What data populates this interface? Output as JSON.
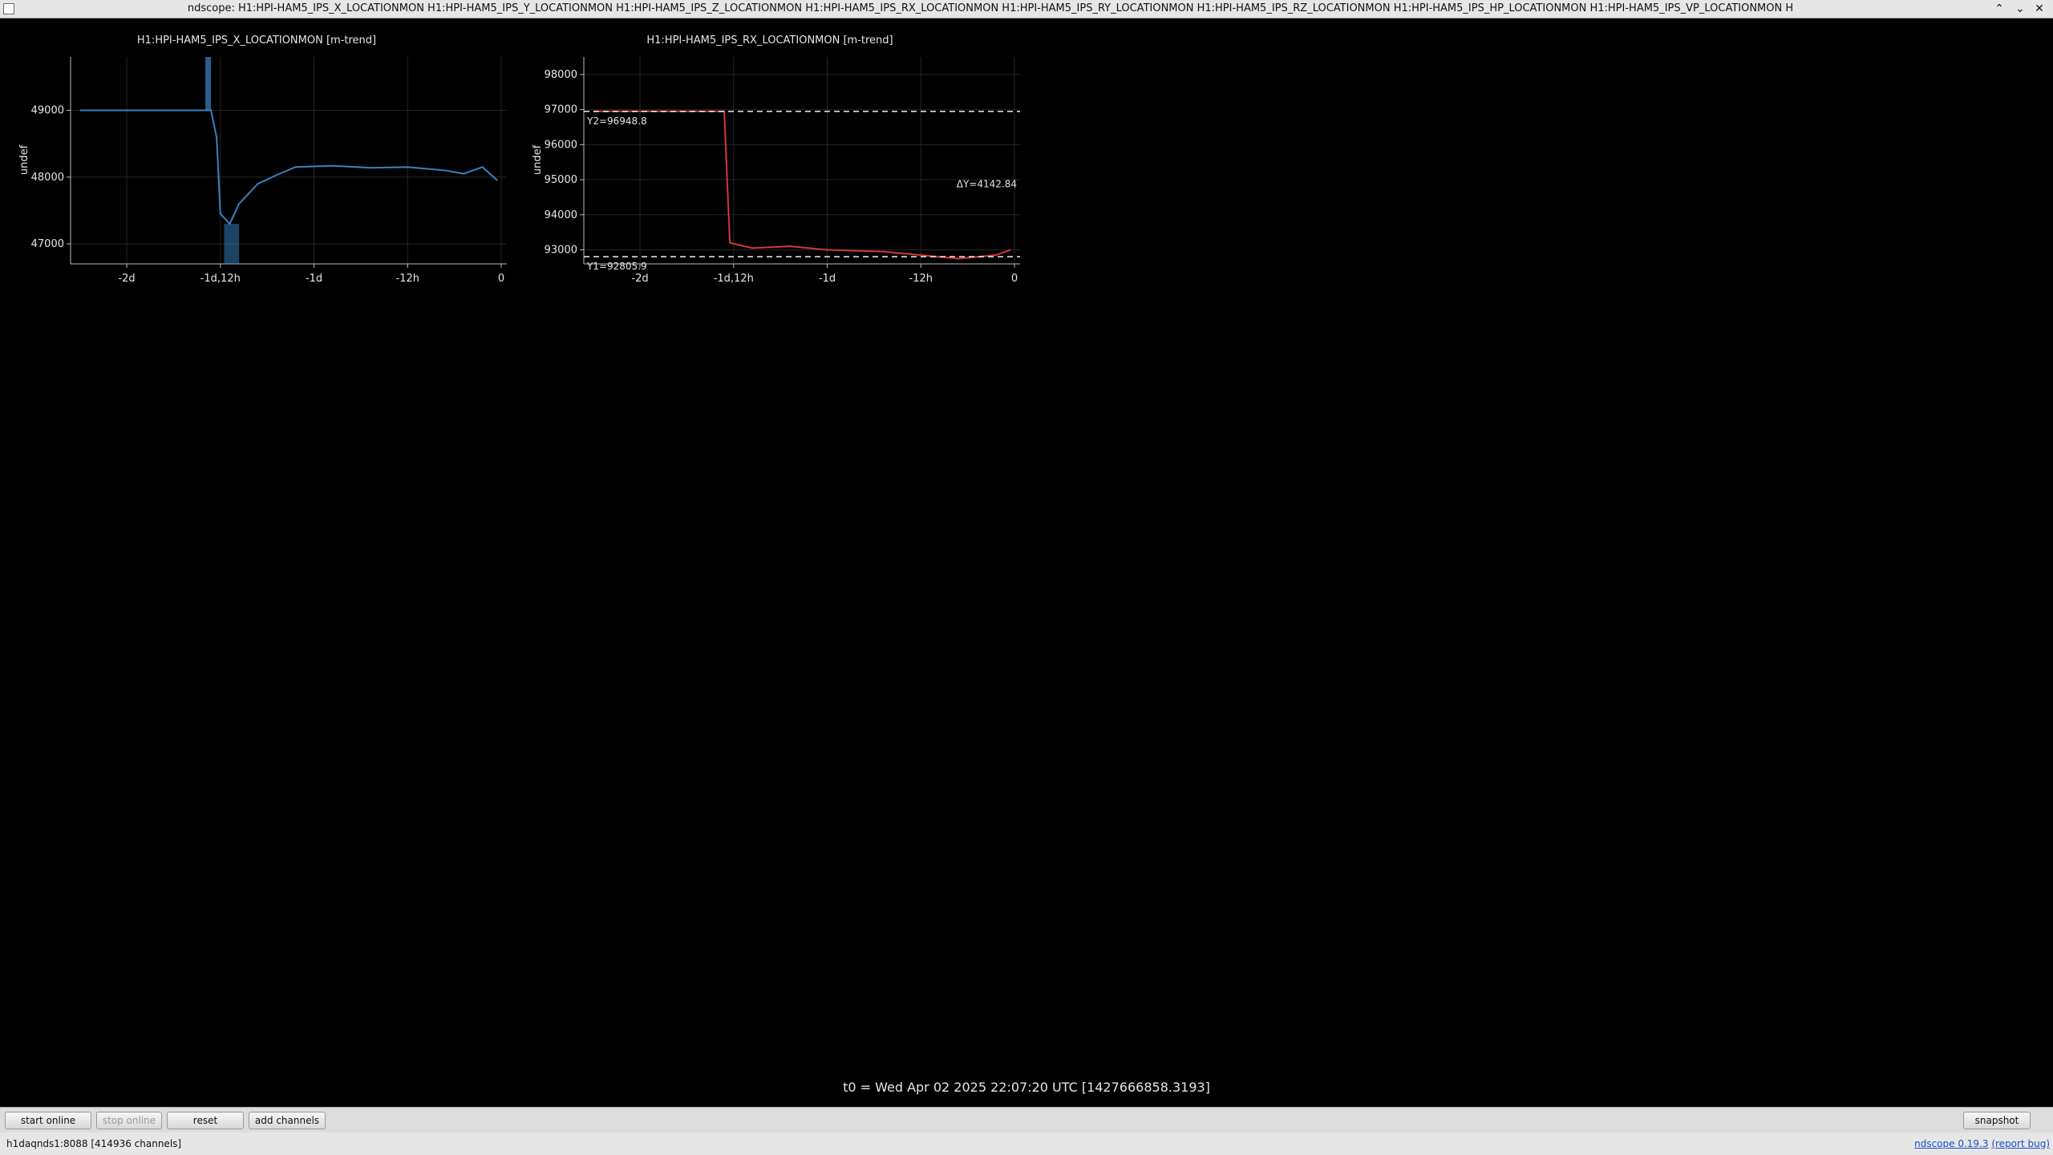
{
  "window": {
    "title": "ndscope: H1:HPI-HAM5_IPS_X_LOCATIONMON H1:HPI-HAM5_IPS_Y_LOCATIONMON H1:HPI-HAM5_IPS_Z_LOCATIONMON H1:HPI-HAM5_IPS_RX_LOCATIONMON H1:HPI-HAM5_IPS_RY_LOCATIONMON H1:HPI-HAM5_IPS_RZ_LOCATIONMON H1:HPI-HAM5_IPS_HP_LOCATIONMON H1:HPI-HAM5_IPS_VP_LOCATIONMON H",
    "controls": [
      "⌃",
      "⌄",
      "✕"
    ]
  },
  "time_axis_ticks": [
    "-2d",
    "-1d,12h",
    "-1d",
    "-12h",
    "0"
  ],
  "plots": [
    {
      "title": "H1:HPI-HAM5_IPS_X_LOCATIONMON [m-trend]",
      "ylabel": "undef",
      "color": "#3a86c8",
      "grid": true,
      "yticks": [
        "49000",
        "48000",
        "47000"
      ],
      "trend": [
        [
          -2.25,
          49000
        ],
        [
          -1.6,
          49000
        ],
        [
          -1.55,
          49000
        ],
        [
          -1.52,
          48600
        ],
        [
          -1.5,
          47450
        ],
        [
          -1.45,
          47300
        ],
        [
          -1.4,
          47600
        ],
        [
          -1.35,
          47750
        ],
        [
          -1.3,
          47900
        ],
        [
          -1.2,
          48030
        ],
        [
          -1.1,
          48150
        ],
        [
          -0.9,
          48170
        ],
        [
          -0.7,
          48140
        ],
        [
          -0.5,
          48150
        ],
        [
          -0.3,
          48100
        ],
        [
          -0.2,
          48050
        ],
        [
          -0.1,
          48150
        ],
        [
          -0.02,
          47950
        ]
      ],
      "ylim": [
        46700,
        49800
      ],
      "spike_hi": [
        -1.58,
        -1.55
      ],
      "spike_lo": [
        -1.48,
        -1.4
      ]
    },
    {
      "title": "H1:HPI-HAM5_IPS_RX_LOCATIONMON [m-trend]",
      "ylabel": "undef",
      "color": "#d93a3a",
      "grid": true,
      "yticks": [
        "98000",
        "97000",
        "96000",
        "95000",
        "94000",
        "93000"
      ],
      "trend": [
        [
          -2.25,
          96948.8
        ],
        [
          -1.6,
          96948.8
        ],
        [
          -1.55,
          96948
        ],
        [
          -1.52,
          93200
        ],
        [
          -1.4,
          93050
        ],
        [
          -1.2,
          93100
        ],
        [
          -1.0,
          93000
        ],
        [
          -0.7,
          92950
        ],
        [
          -0.5,
          92850
        ],
        [
          -0.3,
          92750
        ],
        [
          -0.1,
          92850
        ],
        [
          -0.02,
          93000
        ]
      ],
      "ylim": [
        92600,
        98500
      ],
      "cursors": {
        "y1": 92805.9,
        "y2": 96948.8,
        "dy_label": "ΔY=4142.84",
        "y1_label": "Y1=92805.9",
        "y2_label": "Y2=96948.8"
      }
    }
  ],
  "t0": "t0 = Wed Apr 02 2025 22:07:20 UTC [1427666858.3193]",
  "toolbar": {
    "start_online": "start online",
    "stop_online": "stop online",
    "reset": "reset",
    "add_channels": "add channels",
    "snapshot": "snapshot"
  },
  "status": {
    "server": "h1daqnds1:8088",
    "channels": "[414936 channels]",
    "version_link": "ndscope 0.19.3",
    "report_bug": "(report bug)"
  }
}
